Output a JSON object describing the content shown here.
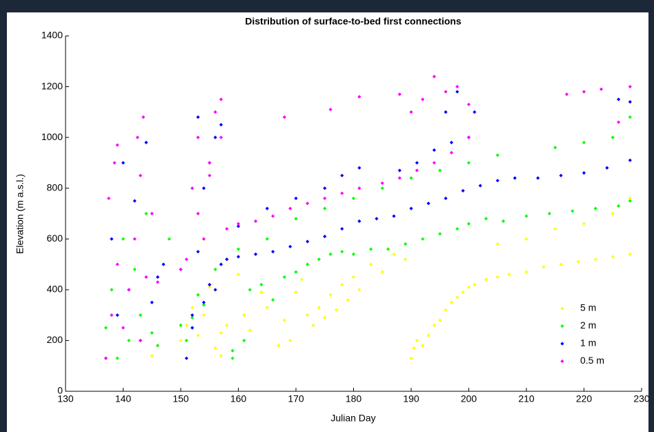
{
  "chart_data": {
    "type": "scatter",
    "title": "Distribution of surface-to-bed first connections",
    "x_label": "Julian Day",
    "y_label": "Elevation (m a.s.l.)",
    "xlim": [
      130,
      230
    ],
    "ylim": [
      0,
      1400
    ],
    "xticks": [
      130,
      140,
      150,
      160,
      170,
      180,
      190,
      200,
      210,
      220,
      230
    ],
    "yticks": [
      0,
      200,
      400,
      600,
      800,
      1000,
      1200,
      1400
    ],
    "grid": false,
    "legend": "lower right",
    "series": [
      {
        "name": "5 m",
        "color": "#ffff00",
        "x": [
          145,
          146,
          150,
          151,
          152,
          153,
          154,
          155,
          156,
          157,
          157,
          158,
          160,
          161,
          162,
          164,
          165,
          167,
          168,
          169,
          170,
          171,
          172,
          173,
          174,
          175,
          176,
          177,
          178,
          179,
          180,
          181,
          183,
          185,
          187,
          189,
          190,
          190.5,
          191,
          192,
          193,
          194,
          195,
          196,
          197,
          198,
          199,
          200,
          201,
          203,
          205,
          207,
          210,
          213,
          216,
          219,
          222,
          225,
          228,
          205,
          210,
          215,
          220,
          225,
          228
        ],
        "values": [
          140,
          180,
          200,
          260,
          330,
          220,
          300,
          410,
          170,
          230,
          140,
          260,
          460,
          300,
          240,
          390,
          330,
          180,
          280,
          200,
          390,
          440,
          300,
          260,
          330,
          290,
          380,
          320,
          420,
          360,
          450,
          400,
          500,
          470,
          540,
          520,
          130,
          170,
          200,
          180,
          220,
          260,
          280,
          320,
          350,
          370,
          390,
          410,
          420,
          440,
          450,
          460,
          470,
          490,
          500,
          510,
          520,
          530,
          540,
          580,
          600,
          640,
          660,
          700,
          760
        ]
      },
      {
        "name": "2 m",
        "color": "#00ff00",
        "x": [
          137,
          138,
          139,
          140,
          141,
          142,
          143,
          144,
          145,
          146,
          148,
          150,
          151,
          152,
          153,
          154,
          155,
          156,
          157,
          158,
          159,
          160,
          162,
          164,
          166,
          168,
          170,
          172,
          174,
          176,
          178,
          180,
          183,
          186,
          189,
          192,
          195,
          198,
          200,
          203,
          206,
          210,
          214,
          218,
          222,
          226,
          228,
          165,
          170,
          175,
          180,
          185,
          190,
          195,
          200,
          205,
          215,
          220,
          225,
          228,
          159,
          161
        ],
        "values": [
          250,
          400,
          130,
          600,
          200,
          480,
          300,
          700,
          230,
          180,
          600,
          260,
          200,
          290,
          380,
          340,
          420,
          480,
          500,
          520,
          130,
          560,
          400,
          420,
          360,
          450,
          470,
          500,
          520,
          540,
          550,
          540,
          560,
          560,
          580,
          600,
          620,
          640,
          660,
          680,
          670,
          690,
          700,
          710,
          720,
          730,
          750,
          600,
          680,
          720,
          760,
          800,
          840,
          870,
          900,
          930,
          960,
          980,
          1000,
          1080,
          160,
          200
        ]
      },
      {
        "name": "1 m",
        "color": "#0000ff",
        "x": [
          137,
          138,
          139,
          140,
          141,
          142,
          143,
          144,
          145,
          146,
          147,
          150,
          151,
          152,
          153,
          154,
          155,
          156,
          157,
          152,
          153,
          154,
          155,
          156,
          157,
          158,
          160,
          163,
          166,
          169,
          172,
          175,
          178,
          181,
          184,
          187,
          190,
          193,
          196,
          199,
          202,
          205,
          208,
          212,
          216,
          220,
          224,
          228,
          160,
          165,
          170,
          175,
          178,
          181,
          188,
          191,
          194,
          197,
          200,
          196,
          198,
          201,
          226,
          228
        ],
        "values": [
          130,
          600,
          300,
          900,
          400,
          750,
          200,
          980,
          350,
          450,
          500,
          480,
          130,
          300,
          550,
          800,
          420,
          1000,
          500,
          250,
          1080,
          350,
          900,
          400,
          1050,
          520,
          530,
          540,
          550,
          570,
          590,
          610,
          640,
          670,
          680,
          690,
          720,
          740,
          760,
          790,
          810,
          830,
          840,
          840,
          850,
          860,
          880,
          910,
          650,
          720,
          760,
          800,
          850,
          880,
          870,
          900,
          950,
          980,
          1000,
          1100,
          1180,
          1100,
          1150,
          1140
        ]
      },
      {
        "name": "0.5 m",
        "color": "#ff00ff",
        "x": [
          137,
          137.5,
          138,
          138.5,
          139,
          140,
          141,
          142,
          142.5,
          143,
          143.5,
          144,
          145,
          146,
          150,
          151,
          152,
          153,
          154,
          155,
          156,
          157,
          153,
          155,
          157,
          158,
          160,
          163,
          166,
          169,
          172,
          175,
          178,
          181,
          185,
          188,
          191,
          194,
          197,
          200,
          188,
          190,
          192,
          194,
          196,
          198,
          200,
          217,
          220,
          223,
          226,
          228,
          139,
          143,
          168,
          176,
          181
        ],
        "values": [
          130,
          760,
          300,
          900,
          500,
          250,
          400,
          600,
          1000,
          200,
          1080,
          450,
          700,
          430,
          480,
          520,
          800,
          1000,
          600,
          900,
          1100,
          1150,
          700,
          850,
          1000,
          640,
          660,
          670,
          690,
          720,
          740,
          760,
          780,
          800,
          820,
          840,
          870,
          900,
          940,
          1000,
          1170,
          1100,
          1150,
          1240,
          1180,
          1200,
          1130,
          1170,
          1180,
          1190,
          1060,
          1200,
          970,
          850,
          1080,
          1110,
          1160
        ]
      }
    ]
  }
}
